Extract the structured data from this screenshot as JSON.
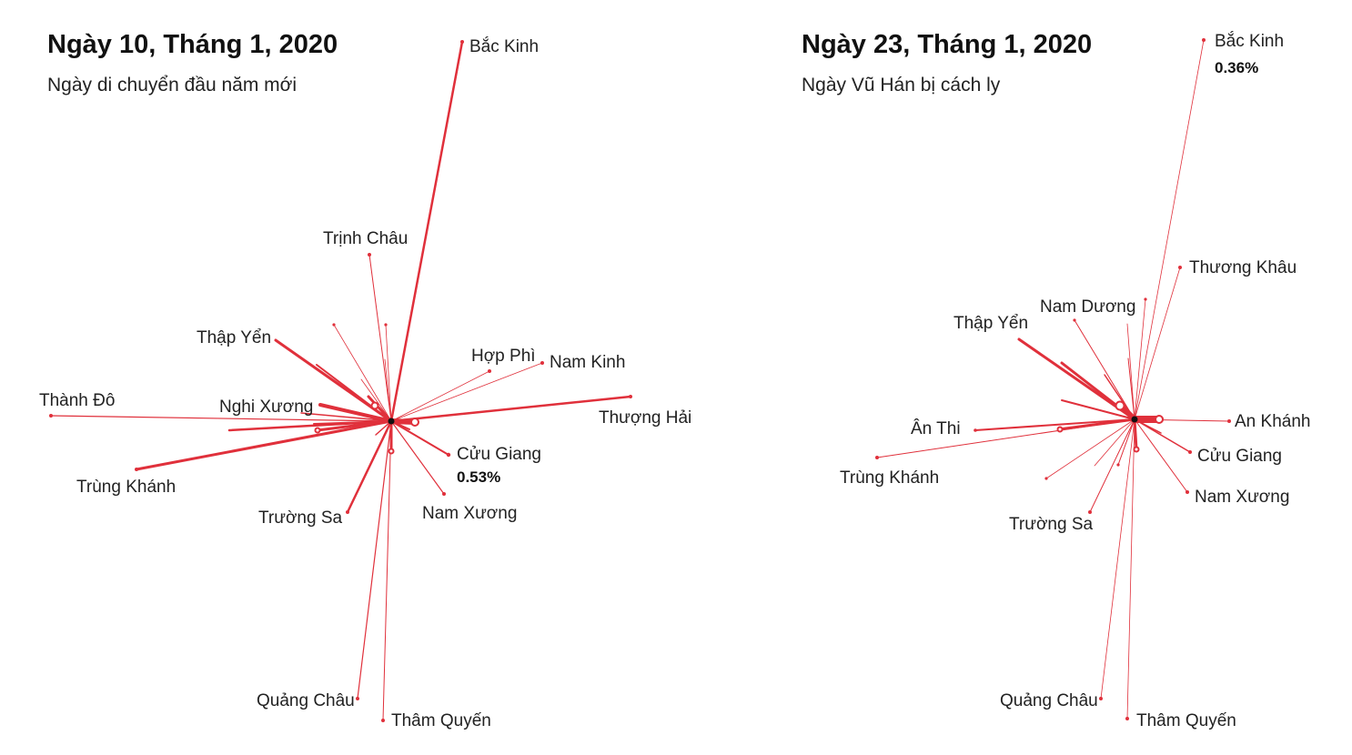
{
  "accent_color": "#e0303b",
  "hub_color": "#111111",
  "panels": [
    {
      "title": "Ngày 10, Tháng 1, 2020",
      "subtitle": "Ngày di chuyển đầu năm mới",
      "highlight_city": "Cửu Giang",
      "highlight_value": "0.53%",
      "cities": [
        {
          "name": "Bắc Kinh",
          "labeled": true
        },
        {
          "name": "Trịnh Châu",
          "labeled": true
        },
        {
          "name": "Thập Yển",
          "labeled": true
        },
        {
          "name": "Hợp Phì",
          "labeled": true
        },
        {
          "name": "Nam Kinh",
          "labeled": true
        },
        {
          "name": "Thành Đô",
          "labeled": true
        },
        {
          "name": "Nghi Xương",
          "labeled": true
        },
        {
          "name": "Thượng Hải",
          "labeled": true
        },
        {
          "name": "Cửu Giang",
          "labeled": true
        },
        {
          "name": "Trùng Khánh",
          "labeled": true
        },
        {
          "name": "Trường Sa",
          "labeled": true
        },
        {
          "name": "Nam Xương",
          "labeled": true
        },
        {
          "name": "Quảng Châu",
          "labeled": true
        },
        {
          "name": "Thâm Quyến",
          "labeled": true
        }
      ]
    },
    {
      "title": "Ngày 23, Tháng 1, 2020",
      "subtitle": "Ngày Vũ Hán bị cách ly",
      "highlight_city": "Bắc Kinh",
      "highlight_value": "0.36%",
      "cities": [
        {
          "name": "Bắc Kinh",
          "labeled": true
        },
        {
          "name": "Thương Khâu",
          "labeled": true
        },
        {
          "name": "Nam Dương",
          "labeled": true
        },
        {
          "name": "Thập Yển",
          "labeled": true
        },
        {
          "name": "Ân Thi",
          "labeled": true
        },
        {
          "name": "An Khánh",
          "labeled": true
        },
        {
          "name": "Trùng Khánh",
          "labeled": true
        },
        {
          "name": "Cửu Giang",
          "labeled": true
        },
        {
          "name": "Nam Xương",
          "labeled": true
        },
        {
          "name": "Trường Sa",
          "labeled": true
        },
        {
          "name": "Quảng Châu",
          "labeled": true
        },
        {
          "name": "Thâm Quyến",
          "labeled": true
        }
      ]
    }
  ]
}
